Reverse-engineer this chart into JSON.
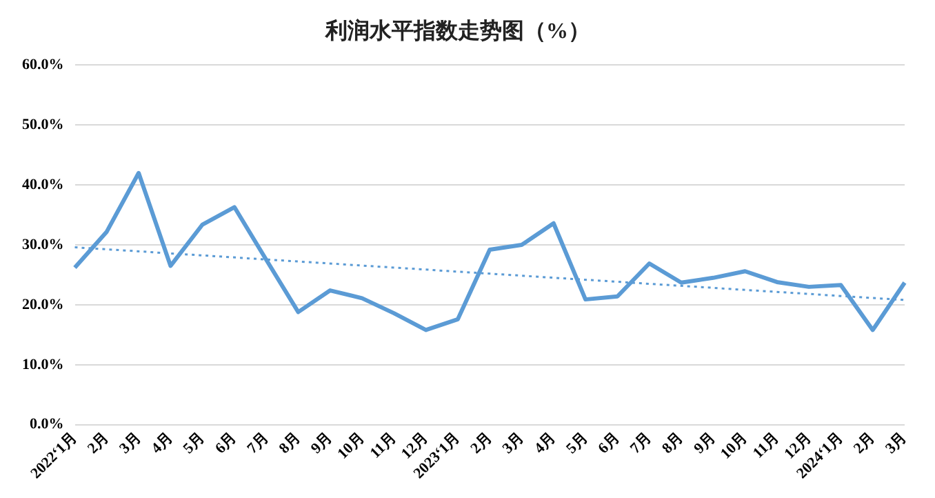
{
  "chart_data": {
    "type": "line",
    "title": "利润水平指数走势图（%）",
    "categories": [
      "2022‘1月",
      "2月",
      "3月",
      "4月",
      "5月",
      "6月",
      "7月",
      "8月",
      "9月",
      "10月",
      "11月",
      "12月",
      "2023‘1月",
      "2月",
      "3月",
      "4月",
      "5月",
      "6月",
      "7月",
      "8月",
      "9月",
      "10月",
      "11月",
      "12月",
      "2024‘1月",
      "2月",
      "3月"
    ],
    "series": [
      {
        "color": "#5b9bd5",
        "line_style": "solid",
        "values": [
          26.2,
          32.2,
          42.0,
          26.5,
          33.4,
          36.3,
          27.5,
          18.8,
          22.4,
          21.1,
          18.6,
          15.8,
          17.6,
          29.2,
          30.0,
          33.6,
          20.9,
          21.4,
          26.9,
          23.7,
          24.5,
          25.6,
          23.8,
          23.0,
          23.3,
          15.8,
          23.7
        ]
      },
      {
        "color": "#5b9bd5",
        "line_style": "dotted",
        "values": [
          29.6,
          null,
          null,
          null,
          null,
          null,
          null,
          null,
          null,
          null,
          null,
          null,
          null,
          null,
          null,
          null,
          null,
          null,
          null,
          null,
          null,
          null,
          null,
          null,
          null,
          null,
          20.8
        ]
      }
    ],
    "ylim": [
      0,
      60
    ],
    "yticks": [
      {
        "value": 0,
        "label": "0.0%"
      },
      {
        "value": 10,
        "label": "10.0%"
      },
      {
        "value": 20,
        "label": "20.0%"
      },
      {
        "value": 30,
        "label": "30.0%"
      },
      {
        "value": 40,
        "label": "40.0%"
      },
      {
        "value": 50,
        "label": "50.0%"
      },
      {
        "value": 60,
        "label": "60.0%"
      }
    ],
    "grid": "y",
    "legend": false,
    "marker": "none"
  }
}
